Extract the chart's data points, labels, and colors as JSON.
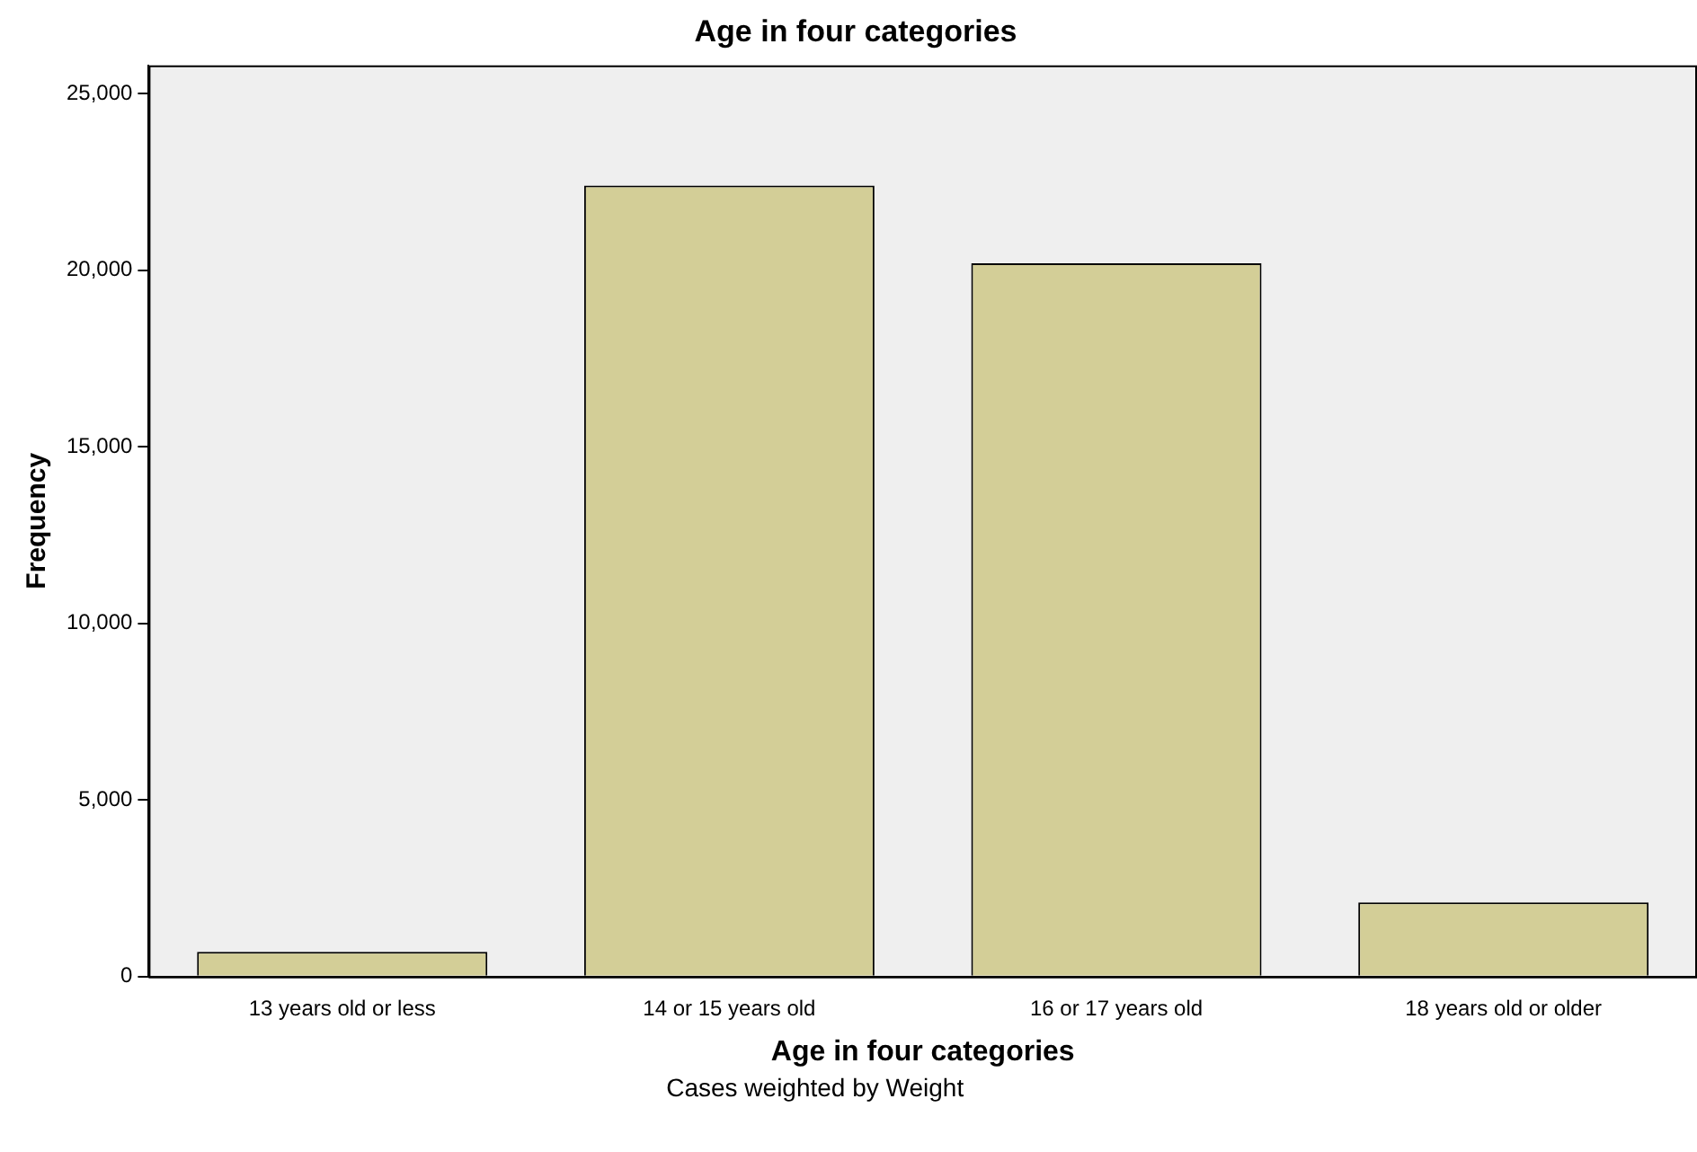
{
  "chart_data": {
    "type": "bar",
    "title": "Age in four categories",
    "xlabel": "Age in four categories",
    "ylabel": "Frequency",
    "categories": [
      "13 years old or less",
      "14 or 15 years old",
      "16 or 17 years old",
      "18 years old or older"
    ],
    "values": [
      700,
      22400,
      20200,
      2100
    ],
    "color": "#d3ce97",
    "ylim": [
      0,
      25800
    ],
    "yticks": [
      {
        "value": 0,
        "label": "0"
      },
      {
        "value": 5000,
        "label": "5,000"
      },
      {
        "value": 10000,
        "label": "10,000"
      },
      {
        "value": 15000,
        "label": "15,000"
      },
      {
        "value": 20000,
        "label": "20,000"
      },
      {
        "value": 25000,
        "label": "25,000"
      }
    ],
    "grid": false,
    "legend": false,
    "annotations": [
      "Cases weighted by Weight"
    ]
  }
}
